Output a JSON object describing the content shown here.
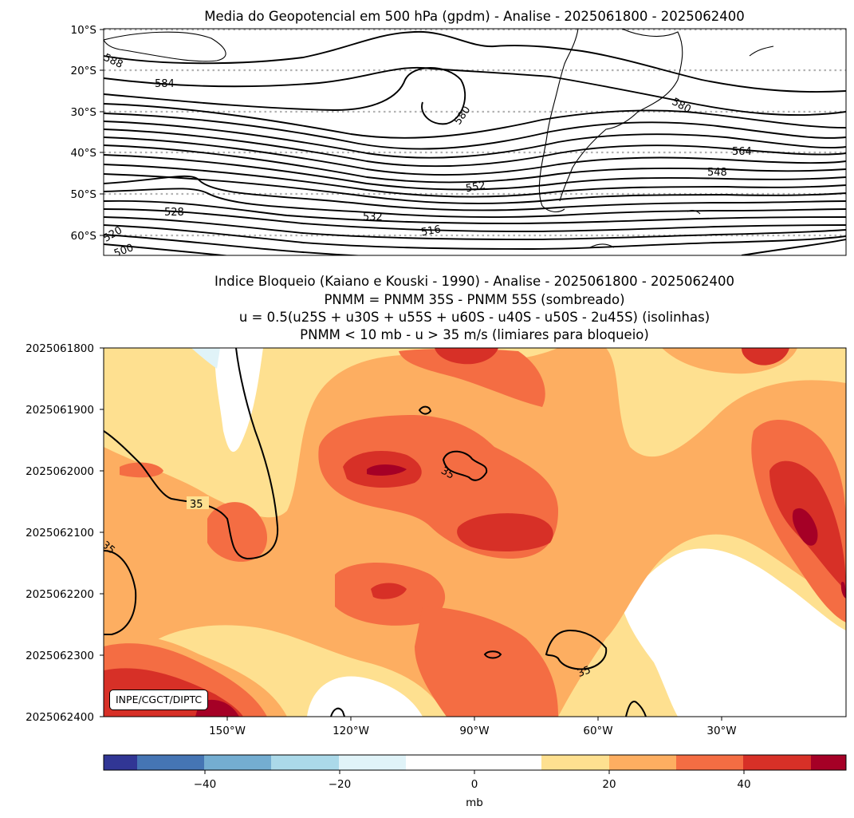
{
  "top_panel": {
    "title": "Media do Geopotencial em 500 hPa (gpdm) - Analise - 2025061800 - 2025062400",
    "lat_ticks": [
      "10°S",
      "20°S",
      "30°S",
      "40°S",
      "50°S",
      "60°S"
    ],
    "contour_labels": [
      "588",
      "584",
      "580",
      "580",
      "564",
      "548",
      "552",
      "528",
      "532",
      "516",
      "520",
      "500"
    ]
  },
  "bottom_panel": {
    "title_lines": [
      "Indice Bloqueio (Kaiano e Kouski - 1990) - Analise - 2025061800 - 2025062400",
      "PNMM = PNMM 35S - PNMM 55S (sombreado)",
      "u = 0.5(u25S + u30S + u55S + u60S - u40S - u50S - 2u45S) (isolinhas)",
      "PNMM < 10 mb - u > 35 m/s (limiares para bloqueio)"
    ],
    "time_ticks": [
      "2025061800",
      "2025061900",
      "2025062000",
      "2025062100",
      "2025062200",
      "2025062300",
      "2025062400"
    ],
    "lon_ticks": [
      "150°W",
      "120°W",
      "90°W",
      "60°W",
      "30°W"
    ],
    "contour_label": "35",
    "credit": "INPE/CGCT/DIPTC"
  },
  "colorbar": {
    "ticks": [
      "−40",
      "−20",
      "0",
      "20",
      "40"
    ],
    "label": "mb"
  },
  "colors": {
    "blue_deep": "#313695",
    "blue_mid": "#4575b4",
    "blue_light": "#74add1",
    "blue_pale": "#abd9e9",
    "blue_paler": "#e0f3f8",
    "white": "#ffffff",
    "yellow": "#fee090",
    "orange_light": "#fdae61",
    "orange": "#f46d43",
    "red": "#d73027",
    "red_dark": "#a50026"
  },
  "chart_data": [
    {
      "type": "contour",
      "title": "Media do Geopotencial em 500 hPa (gpdm) - Analise - 2025061800 - 2025062400",
      "variable": "geopotential height 500 hPa (gpdm)",
      "ylabel_ticks": [
        "10°S",
        "20°S",
        "30°S",
        "40°S",
        "50°S",
        "60°S"
      ],
      "ylim": [
        -65,
        -10
      ],
      "contour_interval": 4,
      "labeled_levels": [
        588,
        584,
        580,
        564,
        552,
        548,
        532,
        528,
        520,
        516,
        500
      ]
    },
    {
      "type": "heatmap",
      "title": "Indice Bloqueio (Kaiano e Kouski - 1990) - Analise - 2025061800 - 2025062400",
      "x_ticks": [
        "150°W",
        "120°W",
        "90°W",
        "60°W",
        "30°W"
      ],
      "y_ticks": [
        "2025061800",
        "2025061900",
        "2025062000",
        "2025062100",
        "2025062200",
        "2025062300",
        "2025062400"
      ],
      "shading": "PNMM 35S - PNMM 55S (mb)",
      "contour": "u index (m/s), level 35",
      "colorbar_levels": [
        -55,
        -50,
        -40,
        -30,
        -20,
        -10,
        0,
        10,
        20,
        30,
        40,
        50,
        55
      ],
      "colorbar_ticks": [
        -40,
        -20,
        0,
        20,
        40
      ],
      "colorbar_label": "mb"
    }
  ]
}
